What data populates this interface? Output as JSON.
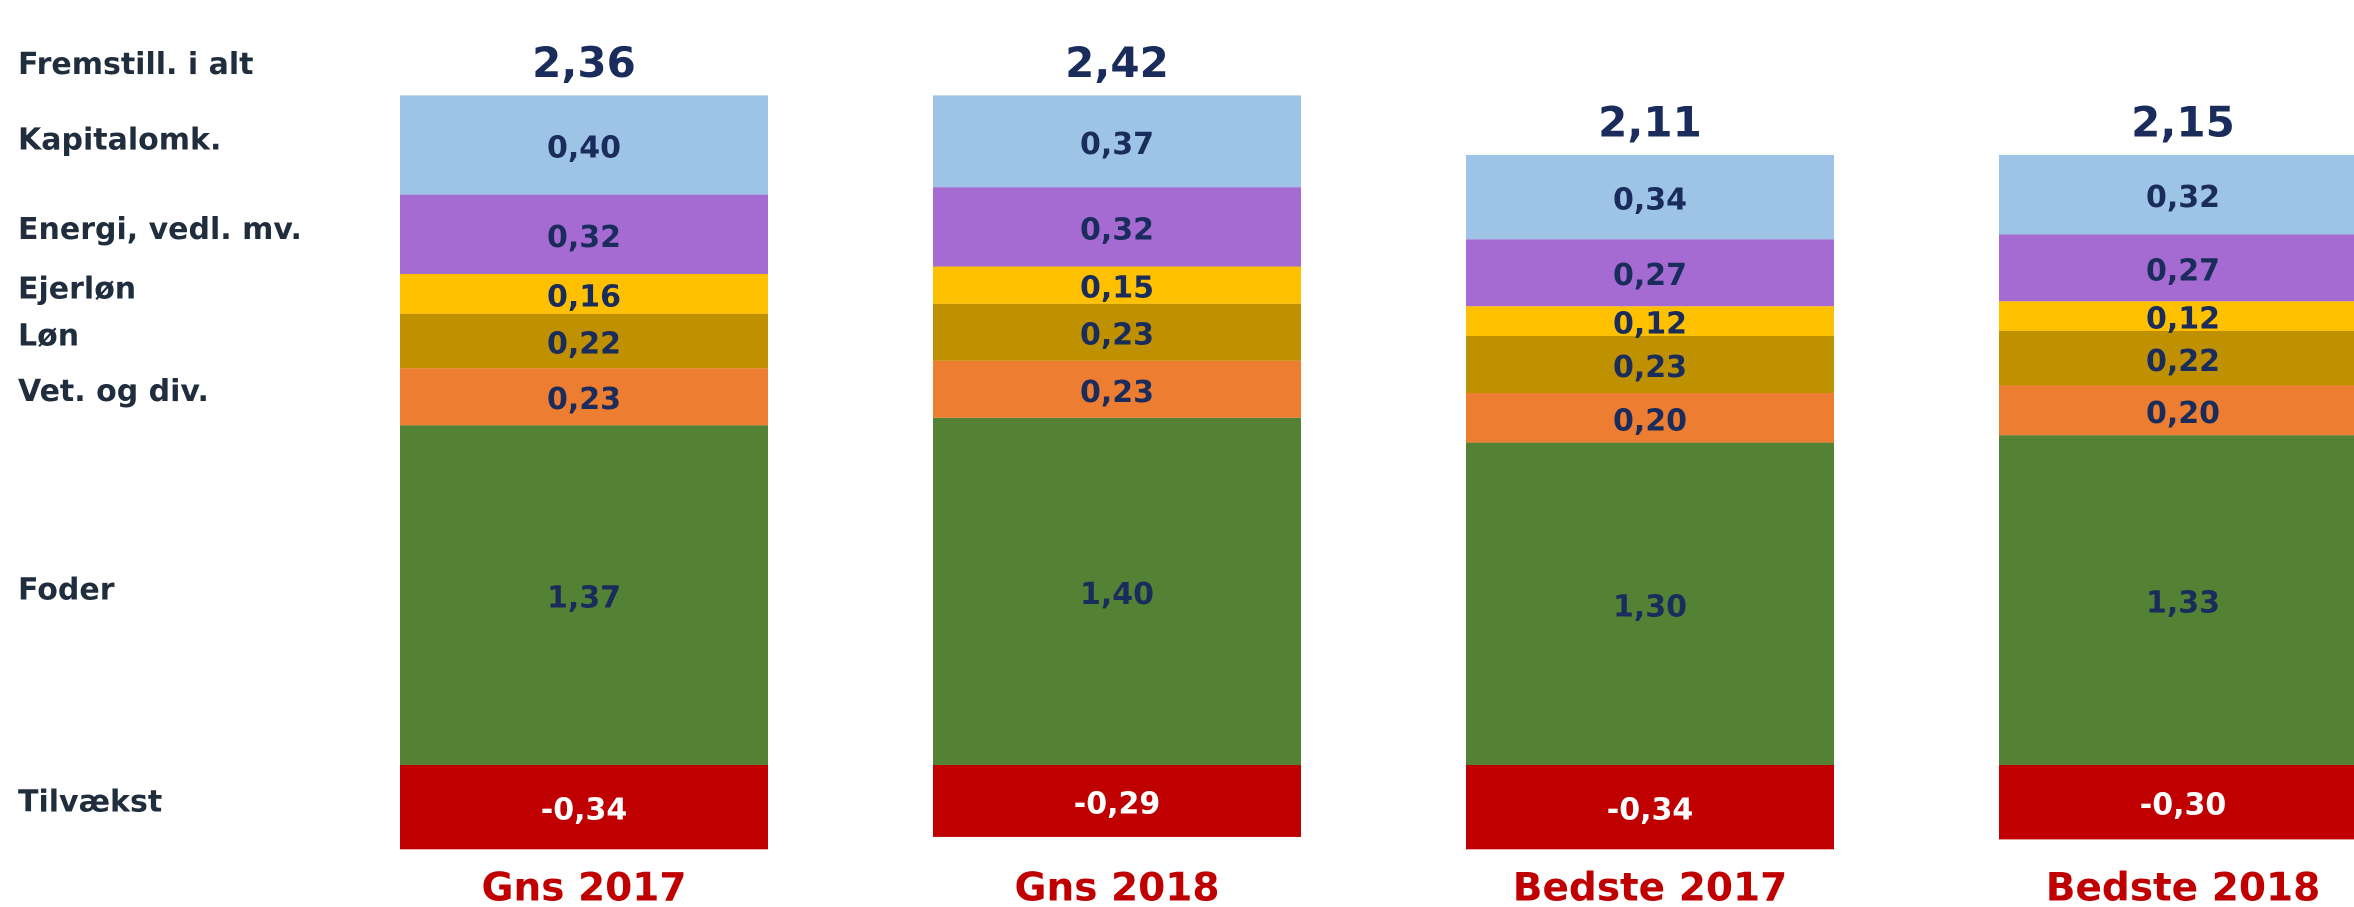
{
  "chart_data": {
    "type": "stacked-bar",
    "categories": [
      "Gns 2017",
      "Gns 2018",
      "Bedste 2017",
      "Bedste 2018"
    ],
    "series": [
      {
        "name": "Tilvækst",
        "color": "#c00000",
        "values": [
          -0.34,
          -0.29,
          -0.34,
          -0.3
        ],
        "value_labels": [
          "-0,34",
          "-0,29",
          "-0,34",
          "-0,30"
        ]
      },
      {
        "name": "Foder",
        "color": "#548235",
        "values": [
          1.37,
          1.4,
          1.3,
          1.33
        ],
        "value_labels": [
          "1,37",
          "1,40",
          "1,30",
          "1,33"
        ]
      },
      {
        "name": "Vet. og div.",
        "color": "#ed7d31",
        "values": [
          0.23,
          0.23,
          0.2,
          0.2
        ],
        "value_labels": [
          "0,23",
          "0,23",
          "0,20",
          "0,20"
        ]
      },
      {
        "name": "Løn",
        "color": "#bf9000",
        "values": [
          0.22,
          0.23,
          0.23,
          0.22
        ],
        "value_labels": [
          "0,22",
          "0,23",
          "0,23",
          "0,22"
        ]
      },
      {
        "name": "Ejerløn",
        "color": "#ffc000",
        "values": [
          0.16,
          0.15,
          0.12,
          0.12
        ],
        "value_labels": [
          "0,16",
          "0,15",
          "0,12",
          "0,12"
        ]
      },
      {
        "name": "Energi, vedl. mv.",
        "color": "#a66bd3",
        "values": [
          0.32,
          0.32,
          0.27,
          0.27
        ],
        "value_labels": [
          "0,32",
          "0,32",
          "0,27",
          "0,27"
        ]
      },
      {
        "name": "Kapitalomk.",
        "color": "#9dc3e6",
        "values": [
          0.4,
          0.37,
          0.34,
          0.32
        ],
        "value_labels": [
          "0,40",
          "0,37",
          "0,34",
          "0,32"
        ]
      }
    ],
    "total_name": "Fremstill. i alt",
    "totals": [
      2.36,
      2.42,
      2.11,
      2.15
    ],
    "total_labels": [
      "2,36",
      "2,42",
      "2,11",
      "2,15"
    ]
  }
}
